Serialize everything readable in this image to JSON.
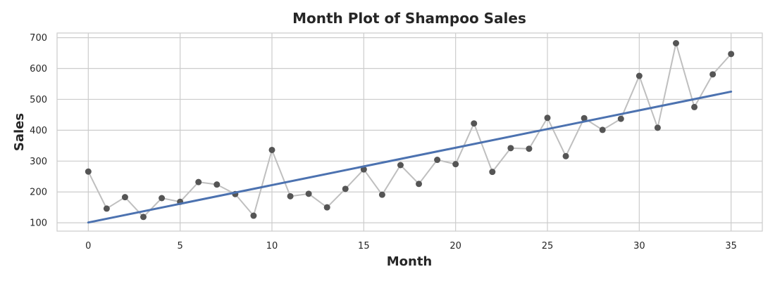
{
  "chart_data": {
    "type": "scatter",
    "title": "Month Plot of Shampoo Sales",
    "xlabel": "Month",
    "ylabel": "Sales",
    "xlim": [
      -1.7,
      36.7
    ],
    "ylim": [
      73,
      715
    ],
    "xticks": [
      0,
      5,
      10,
      15,
      20,
      25,
      30,
      35
    ],
    "yticks": [
      100,
      200,
      300,
      400,
      500,
      600,
      700
    ],
    "grid": true,
    "series": [
      {
        "kind": "line+points",
        "line_color": "#bfbfbf",
        "point_color": "#555555",
        "x": [
          0,
          1,
          2,
          3,
          4,
          5,
          6,
          7,
          8,
          9,
          10,
          11,
          12,
          13,
          14,
          15,
          16,
          17,
          18,
          19,
          20,
          21,
          22,
          23,
          24,
          25,
          26,
          27,
          28,
          29,
          30,
          31,
          32,
          33,
          34,
          35
        ],
        "values": [
          266,
          146,
          183,
          119,
          180,
          168,
          232,
          224,
          193,
          123,
          336,
          186,
          194,
          150,
          210,
          273,
          191,
          287,
          226,
          304,
          290,
          422,
          265,
          342,
          340,
          440,
          316,
          439,
          401,
          437,
          576,
          408,
          682,
          475,
          581,
          647
        ]
      },
      {
        "kind": "trend-line",
        "line_color": "#4c72b0",
        "x": [
          0,
          35
        ],
        "values": [
          101,
          525
        ]
      }
    ]
  }
}
